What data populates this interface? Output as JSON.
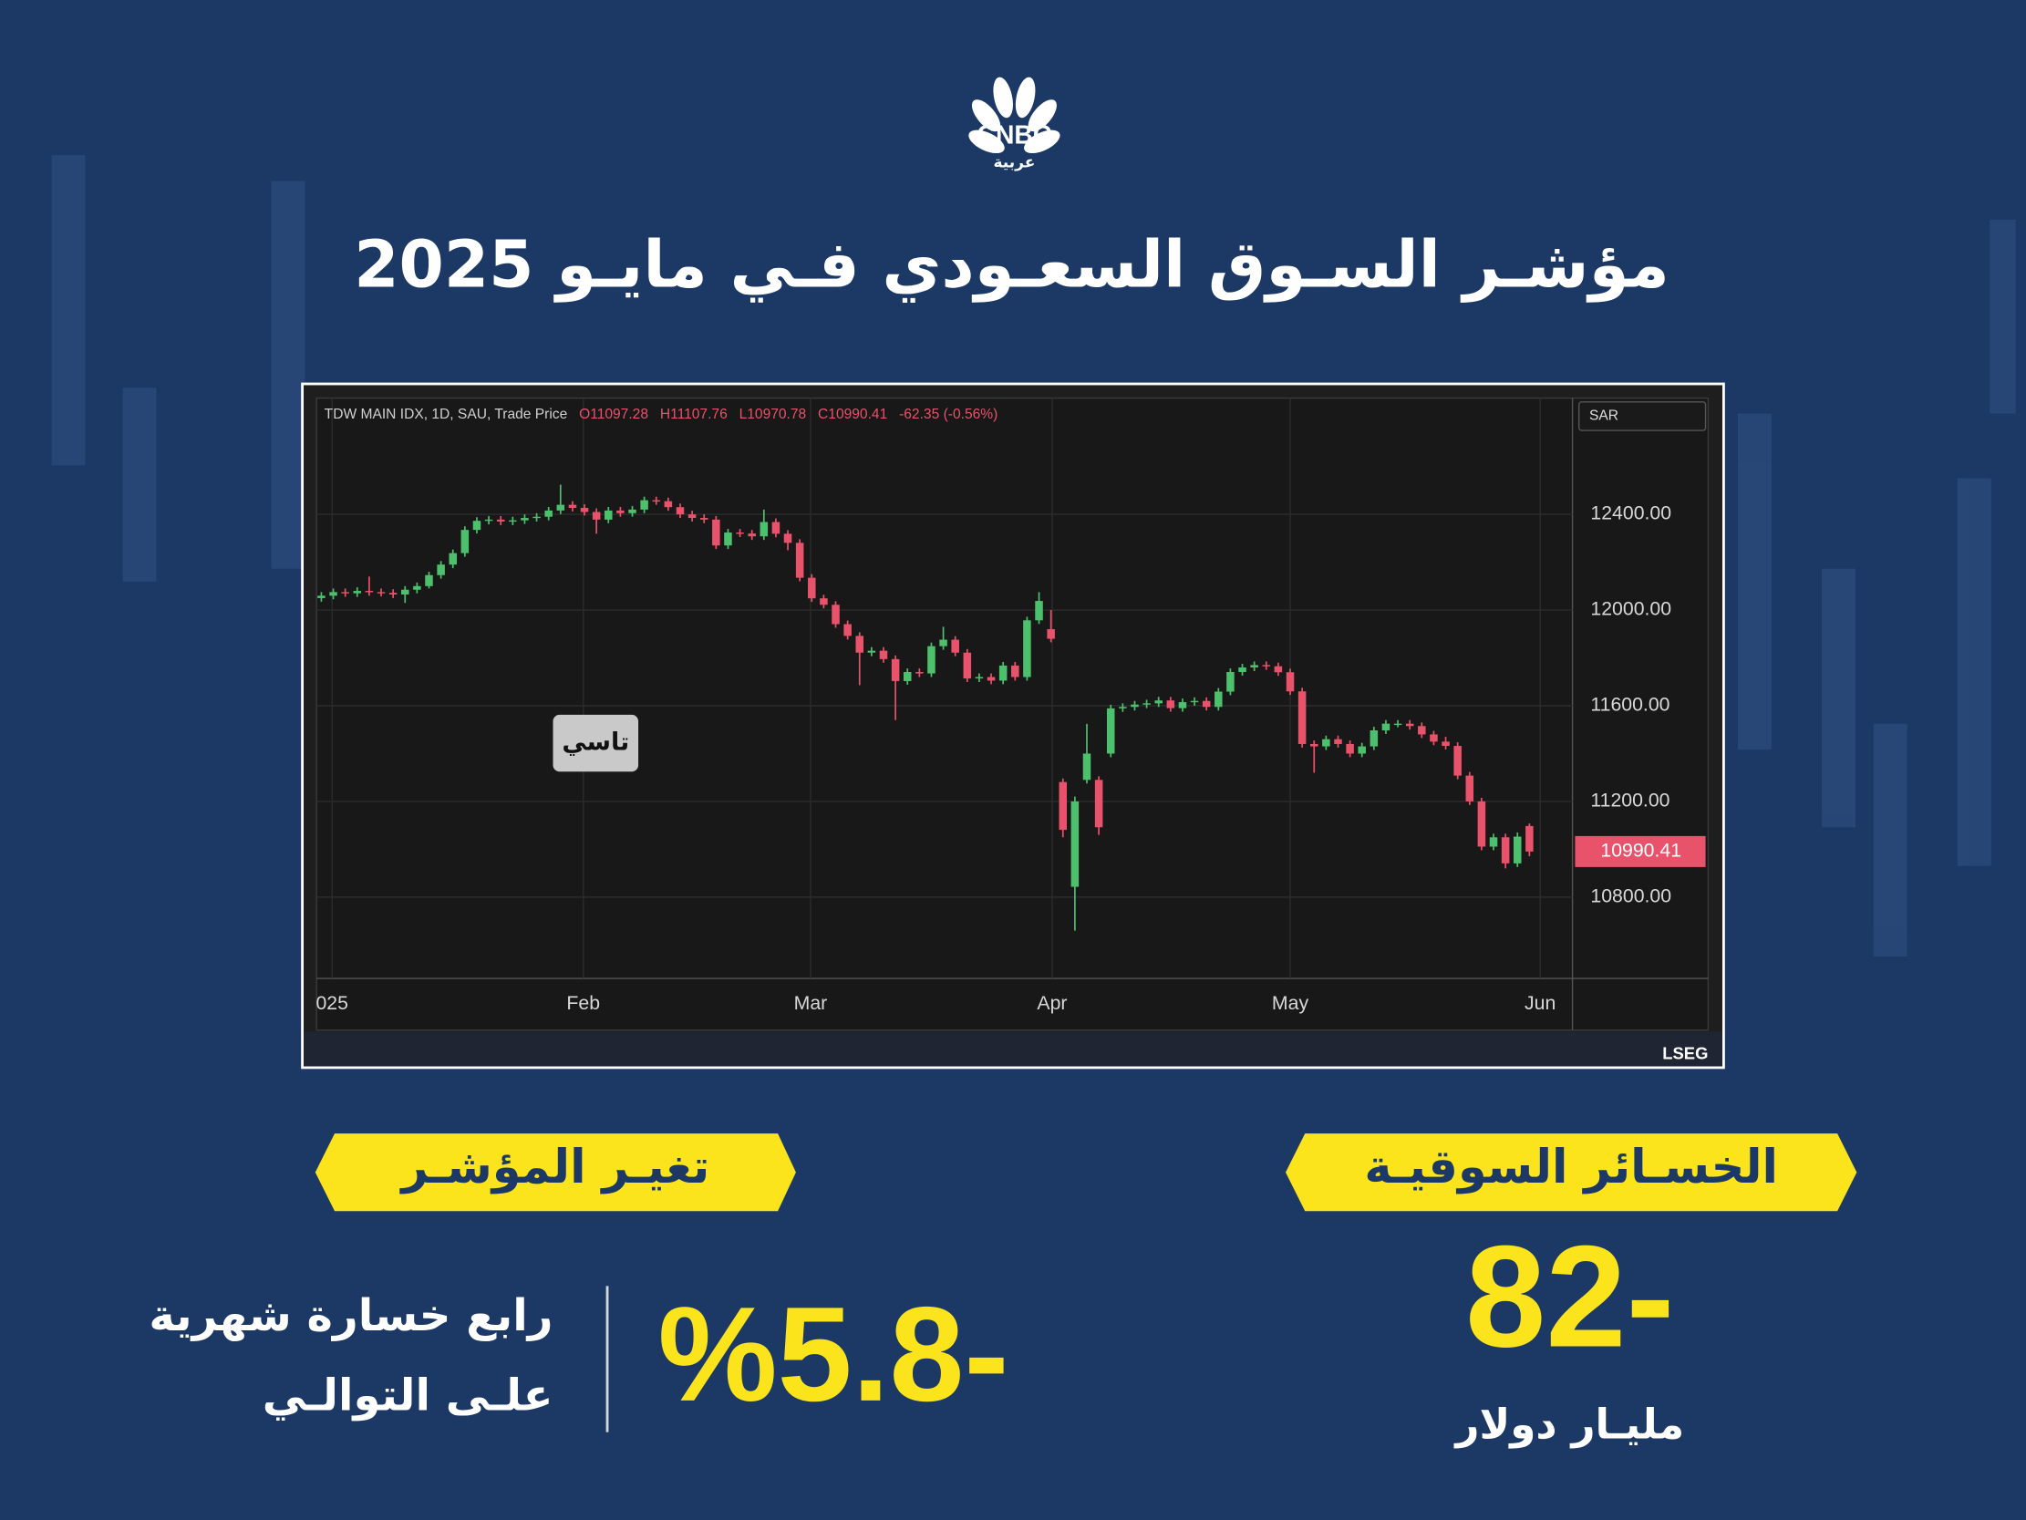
{
  "logo": {
    "name": "CNBC",
    "sub": "عربية"
  },
  "title": "مؤشـر السـوق السعـودي فـي مايـو 2025",
  "chart_data": {
    "type": "candlestick",
    "header": {
      "instrument": "TDW MAIN IDX, 1D, SAU, Trade Price",
      "quote": [
        "O11097.28",
        "H11107.76",
        "L10970.78",
        "C10990.41",
        "-62.35 (-0.56%)"
      ]
    },
    "currency": "SAR",
    "badge": "تاسي",
    "source": "LSEG",
    "up_color": "#4cc06c",
    "down_color": "#e8526a",
    "grid": true,
    "open": [
      12050,
      12060,
      12075,
      12070,
      12080,
      12075,
      12072,
      12065,
      12085,
      12100,
      12146,
      12190,
      12238,
      12335,
      12373,
      12378,
      12370,
      12375,
      12385,
      12390,
      12416,
      12440,
      12427,
      12410,
      12378,
      12416,
      12405,
      12420,
      12459,
      12455,
      12430,
      12400,
      12385,
      12378,
      12270,
      12324,
      12320,
      12308,
      12368,
      12319,
      12281,
      12135,
      12049,
      12022,
      11941,
      11892,
      11822,
      11830,
      11795,
      11703,
      11741,
      11735,
      11849,
      11876,
      11822,
      11714,
      11720,
      11705,
      11768,
      11720,
      11957,
      11920,
      11281,
      10843,
      11290,
      11290,
      11400,
      11589,
      11595,
      11605,
      11610,
      11622,
      11590,
      11615,
      11620,
      11595,
      11659,
      11741,
      11760,
      11770,
      11765,
      11740,
      11660,
      11440,
      11430,
      11460,
      11440,
      11400,
      11430,
      11497,
      11525,
      11525,
      11515,
      11480,
      11450,
      11432,
      11308,
      11200,
      11011,
      11050,
      10941,
      11097.28
    ],
    "high": [
      12075,
      12090,
      12090,
      12095,
      12140,
      12090,
      12087,
      12100,
      12115,
      12160,
      12205,
      12253,
      12350,
      12388,
      12393,
      12393,
      12390,
      12400,
      12405,
      12431,
      12524,
      12455,
      12442,
      12425,
      12431,
      12431,
      12435,
      12474,
      12474,
      12470,
      12445,
      12415,
      12400,
      12393,
      12339,
      12339,
      12335,
      12420,
      12383,
      12334,
      12296,
      12150,
      12064,
      12037,
      11956,
      11907,
      11845,
      11845,
      11810,
      11756,
      11756,
      11864,
      11930,
      11891,
      11837,
      11735,
      11735,
      11783,
      11783,
      11972,
      12075,
      12000,
      11296,
      11220,
      11524,
      11305,
      11604,
      11610,
      11620,
      11625,
      11637,
      11637,
      11630,
      11635,
      11635,
      11674,
      11756,
      11775,
      11785,
      11785,
      11780,
      11755,
      11675,
      11455,
      11475,
      11475,
      11455,
      11445,
      11512,
      11540,
      11540,
      11540,
      11530,
      11495,
      11470,
      11447,
      11323,
      11215,
      11065,
      11065,
      11070,
      11107.76
    ],
    "low": [
      12035,
      12045,
      12055,
      12055,
      12060,
      12057,
      12050,
      12030,
      12070,
      12090,
      12131,
      12175,
      12223,
      12320,
      12358,
      12355,
      12355,
      12360,
      12370,
      12375,
      12401,
      12412,
      12395,
      12319,
      12363,
      12390,
      12390,
      12405,
      12440,
      12415,
      12385,
      12370,
      12363,
      12255,
      12255,
      12305,
      12293,
      12293,
      12304,
      12250,
      12120,
      12034,
      12007,
      11926,
      11877,
      11686,
      11807,
      11780,
      11540,
      11688,
      11720,
      11720,
      11834,
      11807,
      11699,
      11699,
      11690,
      11690,
      11705,
      11705,
      11942,
      11865,
      11050,
      10660,
      11275,
      11060,
      11385,
      11574,
      11580,
      11590,
      11595,
      11575,
      11575,
      11600,
      11580,
      11580,
      11644,
      11726,
      11745,
      11750,
      11725,
      11645,
      11425,
      11320,
      11415,
      11425,
      11385,
      11385,
      11415,
      11482,
      11510,
      11500,
      11465,
      11435,
      11417,
      11293,
      11185,
      10996,
      10996,
      10920,
      10926,
      10970.78
    ],
    "close": [
      12060,
      12075,
      12070,
      12080,
      12075,
      12072,
      12065,
      12085,
      12100,
      12146,
      12190,
      12238,
      12335,
      12373,
      12378,
      12370,
      12375,
      12385,
      12390,
      12416,
      12440,
      12427,
      12410,
      12378,
      12416,
      12405,
      12420,
      12459,
      12455,
      12430,
      12400,
      12385,
      12378,
      12270,
      12324,
      12320,
      12308,
      12368,
      12319,
      12281,
      12135,
      12049,
      12022,
      11941,
      11892,
      11822,
      11830,
      11795,
      11703,
      11741,
      11735,
      11849,
      11876,
      11822,
      11714,
      11720,
      11705,
      11768,
      11720,
      11957,
      12038,
      11880,
      11081,
      11200,
      11400,
      11092,
      11589,
      11595,
      11605,
      11610,
      11622,
      11590,
      11615,
      11620,
      11595,
      11659,
      11741,
      11760,
      11770,
      11765,
      11740,
      11660,
      11440,
      11430,
      11460,
      11440,
      11400,
      11430,
      11497,
      11525,
      11525,
      11515,
      11480,
      11450,
      11432,
      11308,
      11200,
      11011,
      11050,
      10941,
      11052.76,
      10990.41
    ],
    "xlim": [
      -0.4,
      104.6
    ],
    "xticks": [
      {
        "value": 0.9,
        "label": "025"
      },
      {
        "value": 21.9,
        "label": "Feb"
      },
      {
        "value": 40.9,
        "label": "Mar"
      },
      {
        "value": 61.1,
        "label": "Apr"
      },
      {
        "value": 81,
        "label": "May"
      },
      {
        "value": 101.9,
        "label": "Jun"
      }
    ],
    "ylim": [
      10460,
      12886
    ],
    "yticks": [
      {
        "value": 10800,
        "label": "10800.00"
      },
      {
        "value": 11200,
        "label": "11200.00"
      },
      {
        "value": 11600,
        "label": "11600.00"
      },
      {
        "value": 12000,
        "label": "12000.00"
      },
      {
        "value": 12400,
        "label": "12400.00"
      }
    ]
  },
  "panels": {
    "losses": {
      "label": "الخسـائر السوقيـة",
      "value": "82-",
      "unit": "مليـار دولار"
    },
    "change": {
      "label": "تغيـر المؤشـر",
      "value": "%5.8-",
      "note": [
        "رابع خسارة شهرية",
        "علـى التوالـي"
      ]
    }
  }
}
